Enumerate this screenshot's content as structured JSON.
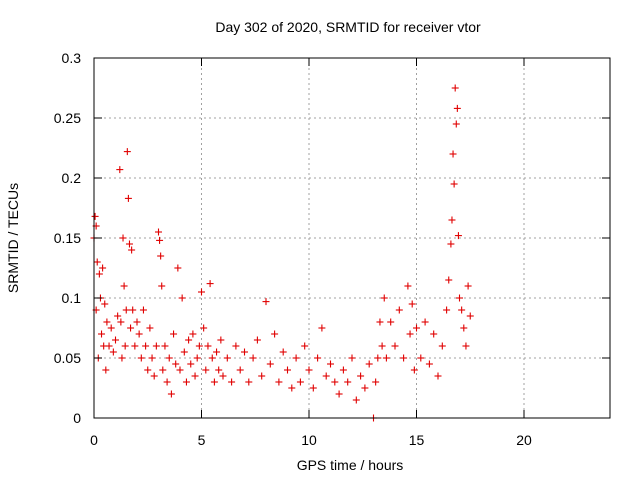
{
  "chart_data": {
    "type": "scatter",
    "title": "Day 302 of 2020, SRMTID for receiver vtor",
    "xlabel": "GPS time / hours",
    "ylabel": "SRMTID / TECUs",
    "xlim": [
      0,
      24
    ],
    "ylim": [
      0,
      0.3
    ],
    "xticks": [
      0,
      5,
      10,
      15,
      20
    ],
    "yticks": [
      0,
      0.05,
      0.1,
      0.15,
      0.2,
      0.25,
      0.3
    ],
    "xtick_labels": [
      "0",
      "5",
      "10",
      "15",
      "20"
    ],
    "ytick_labels": [
      "0",
      "0.05",
      "0.1",
      "0.15",
      "0.2",
      "0.25",
      "0.3"
    ],
    "grid": true,
    "marker": "+",
    "color": "#e00000",
    "series": [
      {
        "name": "SRMTID",
        "points": [
          [
            0.0,
            0.15
          ],
          [
            0.05,
            0.168
          ],
          [
            0.1,
            0.16
          ],
          [
            0.1,
            0.09
          ],
          [
            0.15,
            0.13
          ],
          [
            0.2,
            0.05
          ],
          [
            0.25,
            0.12
          ],
          [
            0.3,
            0.1
          ],
          [
            0.35,
            0.07
          ],
          [
            0.4,
            0.125
          ],
          [
            0.45,
            0.06
          ],
          [
            0.5,
            0.095
          ],
          [
            0.55,
            0.04
          ],
          [
            0.6,
            0.08
          ],
          [
            0.7,
            0.06
          ],
          [
            0.8,
            0.075
          ],
          [
            0.9,
            0.055
          ],
          [
            1.0,
            0.065
          ],
          [
            1.1,
            0.085
          ],
          [
            1.2,
            0.207
          ],
          [
            1.25,
            0.08
          ],
          [
            1.3,
            0.05
          ],
          [
            1.35,
            0.15
          ],
          [
            1.4,
            0.11
          ],
          [
            1.45,
            0.06
          ],
          [
            1.5,
            0.09
          ],
          [
            1.55,
            0.222
          ],
          [
            1.6,
            0.183
          ],
          [
            1.65,
            0.145
          ],
          [
            1.7,
            0.075
          ],
          [
            1.75,
            0.14
          ],
          [
            1.8,
            0.09
          ],
          [
            1.9,
            0.06
          ],
          [
            2.0,
            0.08
          ],
          [
            2.1,
            0.07
          ],
          [
            2.2,
            0.05
          ],
          [
            2.3,
            0.09
          ],
          [
            2.4,
            0.06
          ],
          [
            2.5,
            0.04
          ],
          [
            2.6,
            0.075
          ],
          [
            2.7,
            0.05
          ],
          [
            2.8,
            0.035
          ],
          [
            2.9,
            0.06
          ],
          [
            3.0,
            0.155
          ],
          [
            3.05,
            0.148
          ],
          [
            3.1,
            0.135
          ],
          [
            3.15,
            0.11
          ],
          [
            3.2,
            0.04
          ],
          [
            3.3,
            0.06
          ],
          [
            3.4,
            0.03
          ],
          [
            3.5,
            0.05
          ],
          [
            3.6,
            0.02
          ],
          [
            3.7,
            0.07
          ],
          [
            3.8,
            0.045
          ],
          [
            3.9,
            0.125
          ],
          [
            4.0,
            0.04
          ],
          [
            4.1,
            0.1
          ],
          [
            4.2,
            0.055
          ],
          [
            4.3,
            0.03
          ],
          [
            4.4,
            0.065
          ],
          [
            4.5,
            0.045
          ],
          [
            4.6,
            0.07
          ],
          [
            4.7,
            0.035
          ],
          [
            4.8,
            0.05
          ],
          [
            4.9,
            0.06
          ],
          [
            5.0,
            0.105
          ],
          [
            5.1,
            0.075
          ],
          [
            5.2,
            0.04
          ],
          [
            5.3,
            0.06
          ],
          [
            5.4,
            0.112
          ],
          [
            5.5,
            0.05
          ],
          [
            5.6,
            0.03
          ],
          [
            5.7,
            0.055
          ],
          [
            5.8,
            0.04
          ],
          [
            5.9,
            0.065
          ],
          [
            6.0,
            0.035
          ],
          [
            6.2,
            0.05
          ],
          [
            6.4,
            0.03
          ],
          [
            6.6,
            0.06
          ],
          [
            6.8,
            0.04
          ],
          [
            7.0,
            0.055
          ],
          [
            7.2,
            0.03
          ],
          [
            7.4,
            0.05
          ],
          [
            7.6,
            0.065
          ],
          [
            7.8,
            0.035
          ],
          [
            8.0,
            0.097
          ],
          [
            8.2,
            0.045
          ],
          [
            8.4,
            0.07
          ],
          [
            8.6,
            0.03
          ],
          [
            8.8,
            0.055
          ],
          [
            9.0,
            0.04
          ],
          [
            9.2,
            0.025
          ],
          [
            9.4,
            0.05
          ],
          [
            9.6,
            0.03
          ],
          [
            9.8,
            0.06
          ],
          [
            10.0,
            0.04
          ],
          [
            10.2,
            0.025
          ],
          [
            10.4,
            0.05
          ],
          [
            10.6,
            0.075
          ],
          [
            10.8,
            0.035
          ],
          [
            11.0,
            0.045
          ],
          [
            11.2,
            0.03
          ],
          [
            11.4,
            0.02
          ],
          [
            11.6,
            0.04
          ],
          [
            11.8,
            0.03
          ],
          [
            12.0,
            0.05
          ],
          [
            12.2,
            0.015
          ],
          [
            12.4,
            0.035
          ],
          [
            12.6,
            0.025
          ],
          [
            12.8,
            0.045
          ],
          [
            13.0,
            0.0
          ],
          [
            13.1,
            0.03
          ],
          [
            13.2,
            0.05
          ],
          [
            13.3,
            0.08
          ],
          [
            13.4,
            0.06
          ],
          [
            13.5,
            0.1
          ],
          [
            13.6,
            0.05
          ],
          [
            13.8,
            0.08
          ],
          [
            14.0,
            0.06
          ],
          [
            14.2,
            0.09
          ],
          [
            14.4,
            0.05
          ],
          [
            14.6,
            0.11
          ],
          [
            14.7,
            0.07
          ],
          [
            14.8,
            0.095
          ],
          [
            14.9,
            0.04
          ],
          [
            15.0,
            0.075
          ],
          [
            15.2,
            0.05
          ],
          [
            15.4,
            0.08
          ],
          [
            15.6,
            0.045
          ],
          [
            15.8,
            0.07
          ],
          [
            16.0,
            0.035
          ],
          [
            16.2,
            0.06
          ],
          [
            16.4,
            0.09
          ],
          [
            16.5,
            0.115
          ],
          [
            16.6,
            0.145
          ],
          [
            16.65,
            0.165
          ],
          [
            16.7,
            0.22
          ],
          [
            16.75,
            0.195
          ],
          [
            16.8,
            0.275
          ],
          [
            16.85,
            0.245
          ],
          [
            16.9,
            0.258
          ],
          [
            16.95,
            0.152
          ],
          [
            17.0,
            0.1
          ],
          [
            17.1,
            0.09
          ],
          [
            17.2,
            0.075
          ],
          [
            17.3,
            0.06
          ],
          [
            17.4,
            0.11
          ],
          [
            17.5,
            0.085
          ]
        ]
      }
    ]
  }
}
